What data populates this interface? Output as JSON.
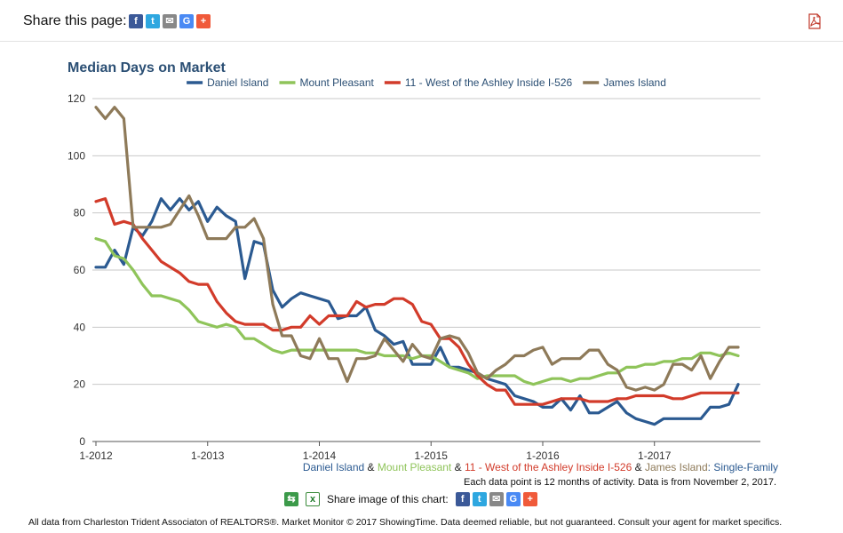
{
  "share_bar": {
    "label": "Share this page:"
  },
  "chart_data": {
    "type": "line",
    "title": "Median Days on Market",
    "ylim": [
      0,
      120
    ],
    "yticks": [
      0,
      20,
      40,
      60,
      80,
      100,
      120
    ],
    "xlim": [
      "2012-01",
      "2017-12"
    ],
    "xticks": [
      "1-2012",
      "1-2013",
      "1-2014",
      "1-2015",
      "1-2016",
      "1-2017"
    ],
    "grid": true,
    "legend_position": "top",
    "x": [
      "2012-01",
      "2012-02",
      "2012-03",
      "2012-04",
      "2012-05",
      "2012-06",
      "2012-07",
      "2012-08",
      "2012-09",
      "2012-10",
      "2012-11",
      "2012-12",
      "2013-01",
      "2013-02",
      "2013-03",
      "2013-04",
      "2013-05",
      "2013-06",
      "2013-07",
      "2013-08",
      "2013-09",
      "2013-10",
      "2013-11",
      "2013-12",
      "2014-01",
      "2014-02",
      "2014-03",
      "2014-04",
      "2014-05",
      "2014-06",
      "2014-07",
      "2014-08",
      "2014-09",
      "2014-10",
      "2014-11",
      "2014-12",
      "2015-01",
      "2015-02",
      "2015-03",
      "2015-04",
      "2015-05",
      "2015-06",
      "2015-07",
      "2015-08",
      "2015-09",
      "2015-10",
      "2015-11",
      "2015-12",
      "2016-01",
      "2016-02",
      "2016-03",
      "2016-04",
      "2016-05",
      "2016-06",
      "2016-07",
      "2016-08",
      "2016-09",
      "2016-10",
      "2016-11",
      "2016-12",
      "2017-01",
      "2017-02",
      "2017-03",
      "2017-04",
      "2017-05",
      "2017-06",
      "2017-07",
      "2017-08",
      "2017-09",
      "2017-10"
    ],
    "series": [
      {
        "name": "Daniel Island",
        "color": "#2b5a91",
        "values": [
          61,
          61,
          67,
          62,
          75,
          72,
          77,
          85,
          81,
          85,
          81,
          84,
          77,
          82,
          79,
          77,
          57,
          70,
          69,
          53,
          47,
          50,
          52,
          51,
          50,
          49,
          43,
          44,
          44,
          47,
          39,
          37,
          34,
          35,
          27,
          27,
          27,
          33,
          26,
          26,
          25,
          24,
          22,
          21,
          20,
          16,
          15,
          14,
          12,
          12,
          15,
          11,
          16,
          10,
          10,
          12,
          14,
          10,
          8,
          7,
          6,
          8,
          8,
          8,
          8,
          8,
          12,
          12,
          13,
          20
        ]
      },
      {
        "name": "Mount Pleasant",
        "color": "#8fc45a",
        "values": [
          71,
          70,
          65,
          64,
          60,
          55,
          51,
          51,
          50,
          49,
          46,
          42,
          41,
          40,
          41,
          40,
          36,
          36,
          34,
          32,
          31,
          32,
          32,
          32,
          32,
          32,
          32,
          32,
          32,
          31,
          31,
          30,
          30,
          30,
          29,
          30,
          30,
          28,
          26,
          25,
          24,
          22,
          23,
          23,
          23,
          23,
          21,
          20,
          21,
          22,
          22,
          21,
          22,
          22,
          23,
          24,
          24,
          26,
          26,
          27,
          27,
          28,
          28,
          29,
          29,
          31,
          31,
          30,
          31,
          30
        ]
      },
      {
        "name": "11 - West of the Ashley Inside I-526",
        "color": "#d23b2a",
        "values": [
          84,
          85,
          76,
          77,
          76,
          71,
          67,
          63,
          61,
          59,
          56,
          55,
          55,
          49,
          45,
          42,
          41,
          41,
          41,
          39,
          39,
          40,
          40,
          44,
          41,
          44,
          44,
          44,
          49,
          47,
          48,
          48,
          50,
          50,
          48,
          42,
          41,
          36,
          36,
          33,
          27,
          23,
          20,
          18,
          18,
          13,
          13,
          13,
          13,
          14,
          15,
          15,
          15,
          14,
          14,
          14,
          15,
          15,
          16,
          16,
          16,
          16,
          15,
          15,
          16,
          17,
          17,
          17,
          17,
          17
        ]
      },
      {
        "name": "James Island",
        "color": "#8e7a59",
        "values": [
          117,
          113,
          117,
          113,
          75,
          75,
          75,
          75,
          76,
          81,
          86,
          79,
          71,
          71,
          71,
          75,
          75,
          78,
          71,
          48,
          37,
          37,
          30,
          29,
          36,
          29,
          29,
          21,
          29,
          29,
          30,
          36,
          32,
          28,
          34,
          30,
          29,
          36,
          37,
          36,
          31,
          24,
          22,
          25,
          27,
          30,
          30,
          32,
          33,
          27,
          29,
          29,
          29,
          32,
          32,
          27,
          25,
          19,
          18,
          19,
          18,
          20,
          27,
          27,
          25,
          30,
          22,
          28,
          33,
          33
        ]
      }
    ]
  },
  "caption": {
    "daniel": "Daniel Island",
    "amp1": " & ",
    "mp": "Mount Pleasant",
    "amp2": " & ",
    "west": "11 - West of the Ashley Inside I-526",
    "amp3": " & ",
    "james": "James Island",
    "colon": ": ",
    "sf": "Single-Family"
  },
  "note": "Each data point is 12 months of activity. Data is from November 2, 2017.",
  "share_image": {
    "label": "Share image of this chart:"
  },
  "footer": "All data from Charleston Trident Associaton of REALTORS®. Market Monitor © 2017 ShowingTime. Data deemed reliable, but not guaranteed. Consult your agent for market specifics.",
  "icons": {
    "facebook": "f",
    "twitter": "t",
    "email": "✉",
    "google": "G",
    "plus": "+"
  }
}
